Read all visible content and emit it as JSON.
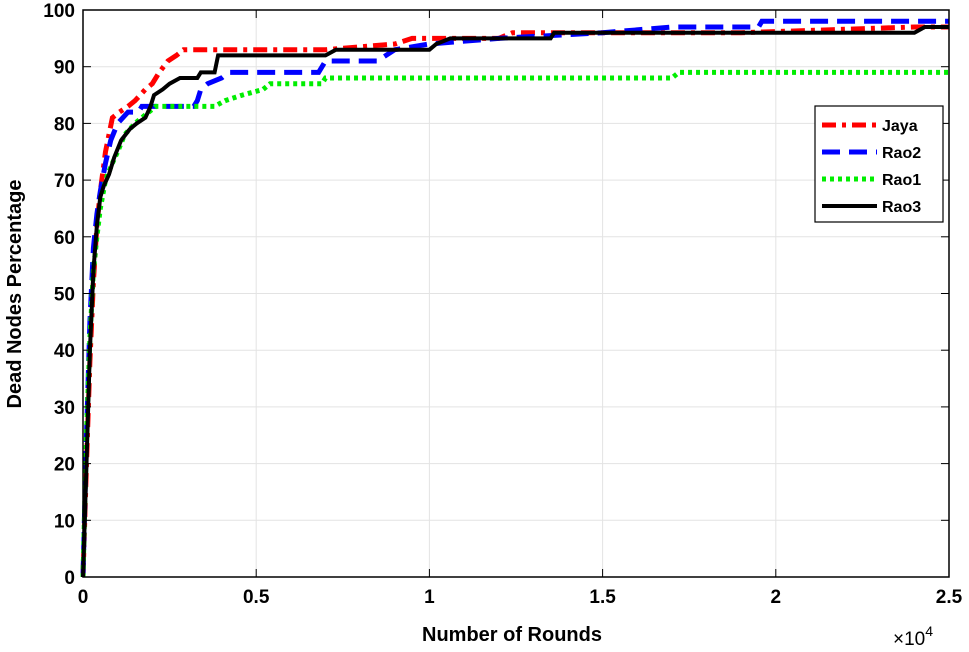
{
  "chart_data": {
    "type": "line",
    "xlabel": "Number of Rounds",
    "ylabel": "Dead Nodes Percentage",
    "x_exponent_label": "×10",
    "x_exponent_power": "4",
    "x_ticks": [
      "0",
      "0.5",
      "1",
      "1.5",
      "2",
      "2.5"
    ],
    "y_ticks": [
      "0",
      "10",
      "20",
      "30",
      "40",
      "50",
      "60",
      "70",
      "80",
      "90",
      "100"
    ],
    "xlim": [
      0,
      25000
    ],
    "ylim": [
      0,
      100
    ],
    "grid": true,
    "legend_position": "right",
    "series": [
      {
        "name": "Jaya",
        "color": "#ff0000",
        "style": "dashdot",
        "points": [
          [
            0,
            0
          ],
          [
            100,
            20
          ],
          [
            200,
            38
          ],
          [
            300,
            52
          ],
          [
            400,
            62
          ],
          [
            500,
            68
          ],
          [
            650,
            75
          ],
          [
            850,
            81
          ],
          [
            1050,
            82
          ],
          [
            1300,
            83
          ],
          [
            1500,
            84
          ],
          [
            1650,
            85
          ],
          [
            1800,
            86
          ],
          [
            2000,
            87
          ],
          [
            2200,
            89
          ],
          [
            2450,
            91
          ],
          [
            2700,
            92
          ],
          [
            2900,
            93
          ],
          [
            4500,
            93
          ],
          [
            7000,
            93
          ],
          [
            9000,
            94
          ],
          [
            9500,
            95
          ],
          [
            12000,
            95
          ],
          [
            12400,
            96
          ],
          [
            19000,
            96
          ],
          [
            24000,
            97
          ],
          [
            25000,
            97
          ]
        ]
      },
      {
        "name": "Rao2",
        "color": "#0000ff",
        "style": "dashed",
        "points": [
          [
            0,
            0
          ],
          [
            100,
            25
          ],
          [
            200,
            45
          ],
          [
            300,
            58
          ],
          [
            400,
            64
          ],
          [
            500,
            68
          ],
          [
            650,
            73
          ],
          [
            800,
            77
          ],
          [
            1000,
            80
          ],
          [
            1300,
            82
          ],
          [
            1600,
            82
          ],
          [
            1700,
            83
          ],
          [
            3200,
            83
          ],
          [
            3300,
            84
          ],
          [
            3400,
            86
          ],
          [
            3600,
            87
          ],
          [
            4000,
            88
          ],
          [
            4200,
            89
          ],
          [
            6800,
            89
          ],
          [
            7000,
            91
          ],
          [
            8500,
            91
          ],
          [
            9000,
            93
          ],
          [
            10000,
            94
          ],
          [
            12000,
            95
          ],
          [
            15000,
            96
          ],
          [
            17000,
            97
          ],
          [
            19500,
            97
          ],
          [
            19600,
            98
          ],
          [
            25000,
            98
          ]
        ]
      },
      {
        "name": "Rao1",
        "color": "#00ee00",
        "style": "dotted",
        "points": [
          [
            0,
            0
          ],
          [
            100,
            25
          ],
          [
            200,
            42
          ],
          [
            300,
            54
          ],
          [
            400,
            60
          ],
          [
            500,
            65
          ],
          [
            650,
            70
          ],
          [
            850,
            73
          ],
          [
            1000,
            75
          ],
          [
            1200,
            78
          ],
          [
            1500,
            80
          ],
          [
            1700,
            81
          ],
          [
            1900,
            82
          ],
          [
            2100,
            83
          ],
          [
            3800,
            83
          ],
          [
            4100,
            84
          ],
          [
            4600,
            85
          ],
          [
            5200,
            86
          ],
          [
            5400,
            87
          ],
          [
            6900,
            87
          ],
          [
            7000,
            88
          ],
          [
            17000,
            88
          ],
          [
            17200,
            89
          ],
          [
            25000,
            89
          ]
        ]
      },
      {
        "name": "Rao3",
        "color": "#000000",
        "style": "solid",
        "points": [
          [
            0,
            0
          ],
          [
            100,
            20
          ],
          [
            200,
            40
          ],
          [
            300,
            54
          ],
          [
            400,
            62
          ],
          [
            500,
            67
          ],
          [
            600,
            69
          ],
          [
            750,
            71
          ],
          [
            900,
            74
          ],
          [
            1100,
            77
          ],
          [
            1350,
            79
          ],
          [
            1550,
            80
          ],
          [
            1800,
            81
          ],
          [
            1950,
            83
          ],
          [
            2050,
            85
          ],
          [
            2300,
            86
          ],
          [
            2500,
            87
          ],
          [
            2800,
            88
          ],
          [
            3300,
            88
          ],
          [
            3400,
            89
          ],
          [
            3800,
            89
          ],
          [
            3900,
            92
          ],
          [
            7000,
            92
          ],
          [
            7300,
            93
          ],
          [
            10000,
            93
          ],
          [
            10200,
            94
          ],
          [
            10600,
            95
          ],
          [
            13500,
            95
          ],
          [
            13600,
            96
          ],
          [
            24000,
            96
          ],
          [
            24300,
            97
          ],
          [
            25000,
            97
          ]
        ]
      }
    ]
  }
}
